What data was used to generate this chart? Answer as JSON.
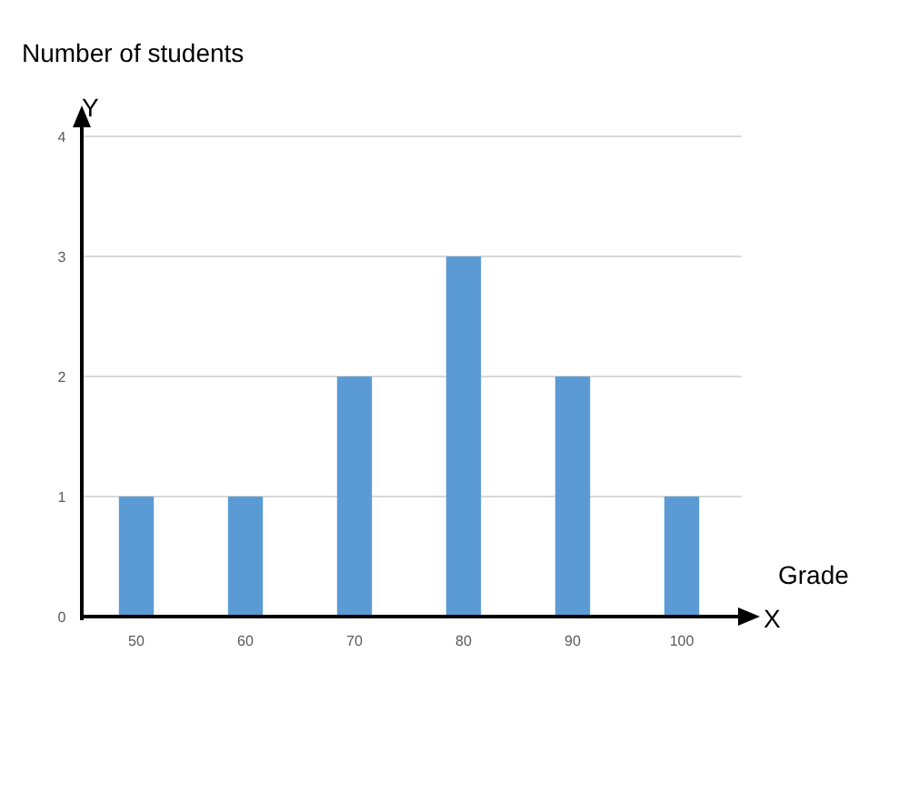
{
  "chart_data": {
    "type": "bar",
    "ylabel": "Number of students",
    "xlabel": "Grade",
    "categories": [
      "50",
      "60",
      "70",
      "80",
      "90",
      "100"
    ],
    "values": [
      1,
      1,
      2,
      3,
      2,
      1
    ],
    "color": "#5b9bd5",
    "ylim": [
      0,
      4
    ],
    "yticks": [
      0,
      1,
      2,
      3,
      4
    ],
    "grid": "y",
    "annotations": [
      "Y",
      "X"
    ]
  }
}
